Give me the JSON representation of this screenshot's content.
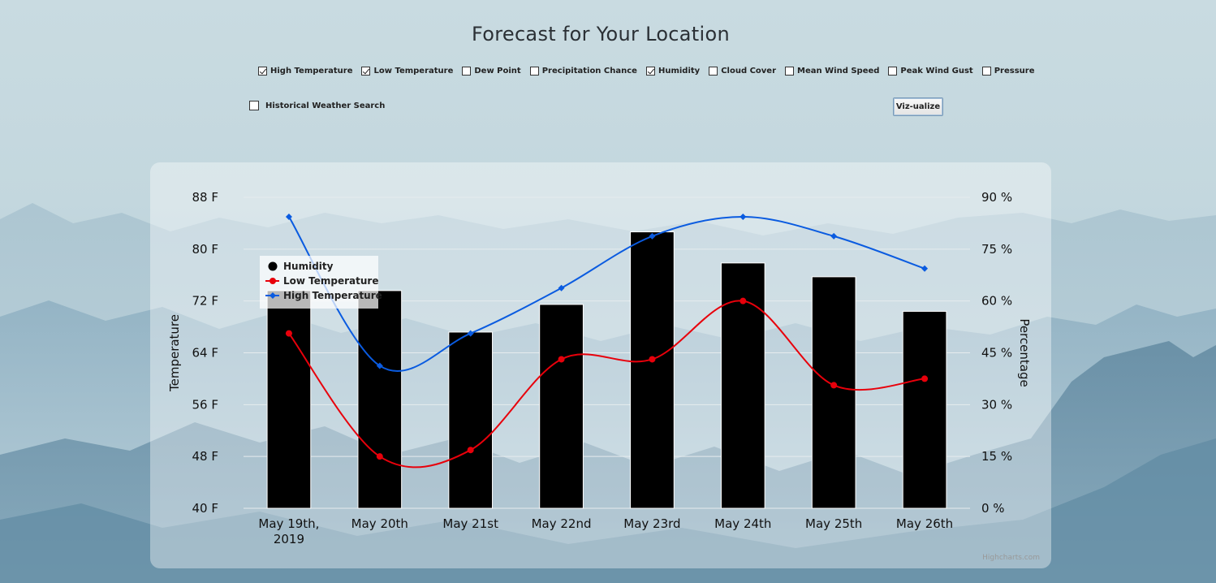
{
  "page": {
    "title": "Forecast for Your Location"
  },
  "options": [
    {
      "label": "High Temperature",
      "checked": true
    },
    {
      "label": "Low Temperature",
      "checked": true
    },
    {
      "label": "Dew Point",
      "checked": false
    },
    {
      "label": "Precipitation Chance",
      "checked": false
    },
    {
      "label": "Humidity",
      "checked": true
    },
    {
      "label": "Cloud Cover",
      "checked": false
    },
    {
      "label": "Mean Wind Speed",
      "checked": false
    },
    {
      "label": "Peak Wind Gust",
      "checked": false
    },
    {
      "label": "Pressure",
      "checked": false
    }
  ],
  "historical": {
    "label": "Historical Weather Search",
    "checked": false
  },
  "button": {
    "label": "Viz-ualize"
  },
  "chart_data": {
    "type": "bar",
    "categories": [
      "May 19th, 2019",
      "May 20th",
      "May 21st",
      "May 22nd",
      "May 23rd",
      "May 24th",
      "May 25th",
      "May 26th"
    ],
    "y_left": {
      "label": "Temperature",
      "min": 40,
      "max": 88,
      "ticks": [
        40,
        48,
        56,
        64,
        72,
        80,
        88
      ],
      "tick_labels": [
        "40 F",
        "48 F",
        "56 F",
        "64 F",
        "72 F",
        "80 F",
        "88 F"
      ]
    },
    "y_right": {
      "label": "Percentage",
      "min": 0,
      "max": 90,
      "ticks": [
        0,
        15,
        30,
        45,
        60,
        75,
        90
      ],
      "tick_labels": [
        "0 %",
        "15 %",
        "30 %",
        "45 %",
        "60 %",
        "75 %",
        "90 %"
      ]
    },
    "grid": true,
    "legend_position": "top-left",
    "series": [
      {
        "name": "Humidity",
        "type": "bar",
        "axis": "right",
        "color": "#000000",
        "values": [
          63,
          63,
          51,
          59,
          80,
          71,
          67,
          57
        ]
      },
      {
        "name": "Low Temperature",
        "type": "spline",
        "axis": "left",
        "color": "#e8000b",
        "values": [
          67,
          48,
          49,
          63,
          63,
          72,
          59,
          60
        ]
      },
      {
        "name": "High Temperature",
        "type": "spline",
        "axis": "left",
        "color": "#0a5be0",
        "values": [
          85,
          62,
          67,
          74,
          82,
          85,
          82,
          77
        ]
      }
    ],
    "credits": "Highcharts.com"
  }
}
